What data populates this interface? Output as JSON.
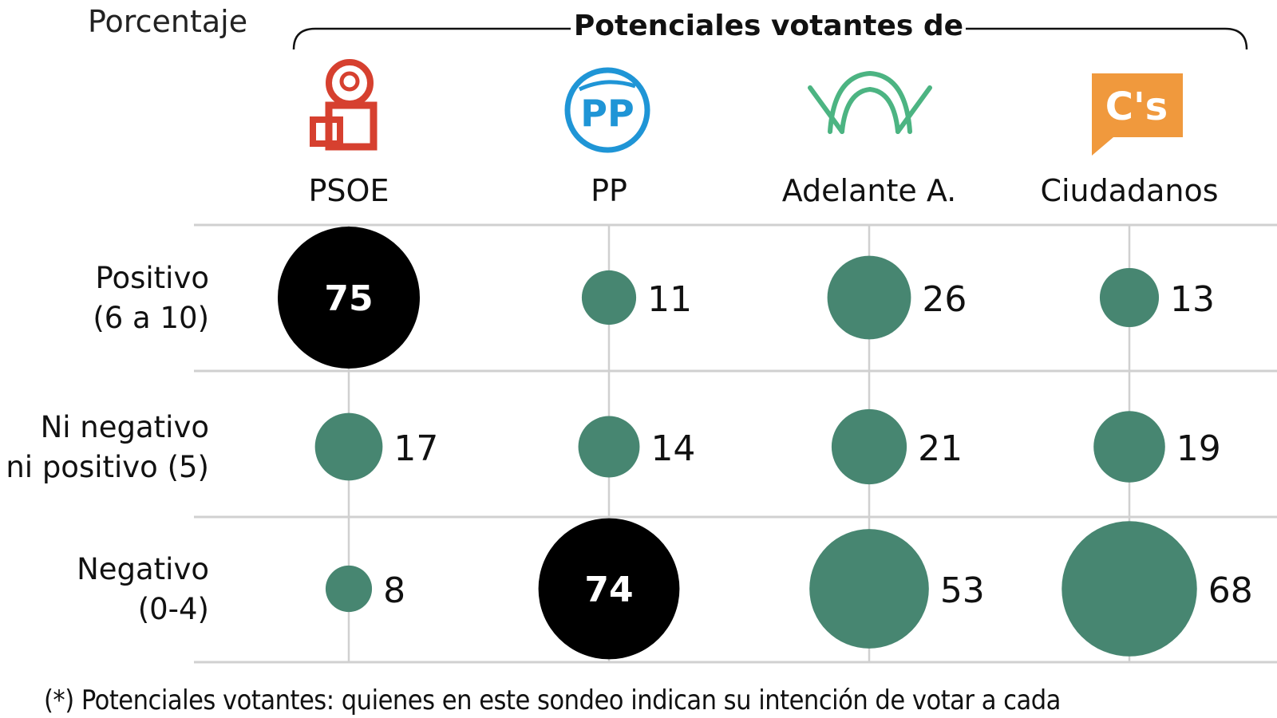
{
  "chart_data": {
    "type": "bubble-table",
    "unit_label": "Porcentaje",
    "group_title": "Potenciales votantes de",
    "columns": [
      "PSOE",
      "PP",
      "Adelante A.",
      "Ciudadanos"
    ],
    "rows": [
      {
        "label": [
          "Positivo",
          "(6 a 10)"
        ],
        "values": [
          75,
          11,
          26,
          13
        ]
      },
      {
        "label": [
          "Ni negativo",
          "ni positivo (5)"
        ],
        "values": [
          17,
          14,
          21,
          19
        ]
      },
      {
        "label": [
          "Negativo",
          "(0-4)"
        ],
        "values": [
          8,
          74,
          53,
          68
        ]
      }
    ],
    "highlight": [
      [
        0,
        0
      ],
      [
        2,
        1
      ]
    ],
    "colors": {
      "bubble": "#478671",
      "highlight": "#000000",
      "grid": "#d0d0d0"
    },
    "logos": [
      {
        "party": "PSOE",
        "icon": "psoe-rose-fist-logo",
        "color": "#d6402f"
      },
      {
        "party": "PP",
        "icon": "pp-circle-logo",
        "color": "#1f95d6"
      },
      {
        "party": "Adelante A.",
        "icon": "adelante-andalucia-logo",
        "color": "#4cb482"
      },
      {
        "party": "Ciudadanos",
        "icon": "ciudadanos-speech-bubble-logo",
        "color": "#f0993d",
        "text": "C's"
      }
    ]
  },
  "footnote": "(*) Potenciales votantes: quienes en este sondeo indican su intención de votar a cada"
}
